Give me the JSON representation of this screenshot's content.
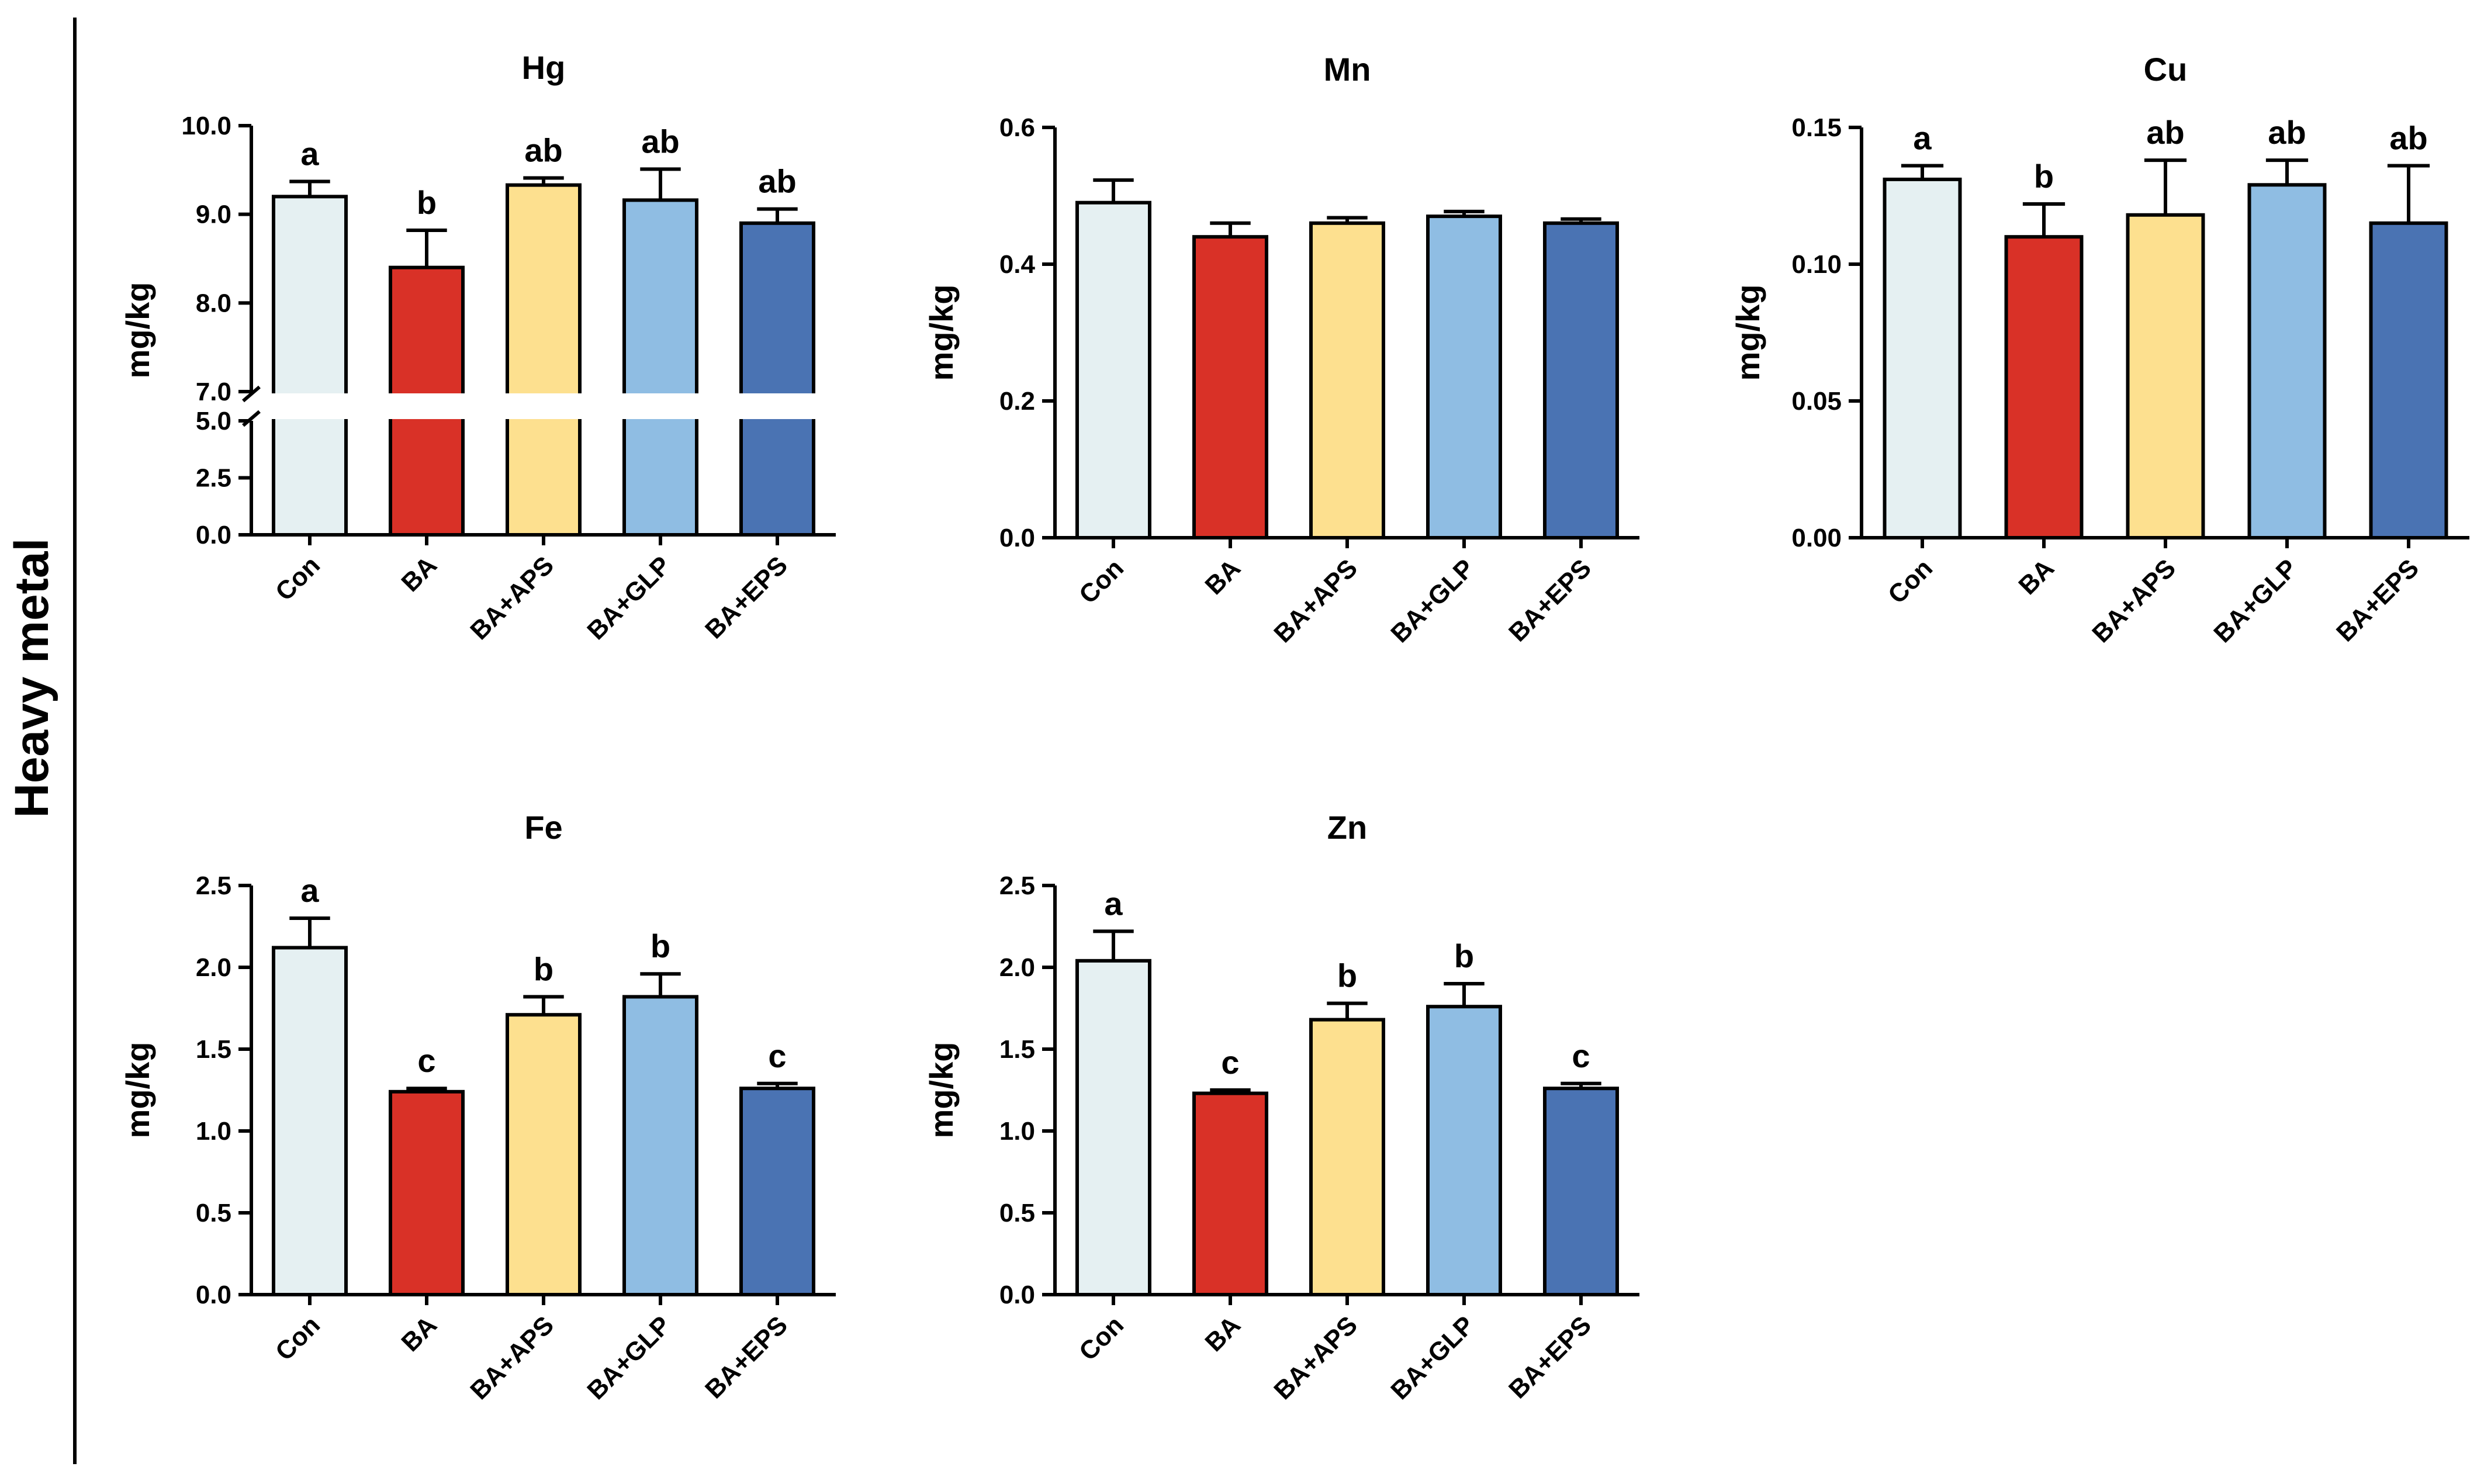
{
  "figure": {
    "side_label": "Heavy metal"
  },
  "colors": {
    "Con": "#e5f0f2",
    "BA": "#d93127",
    "BA+APS": "#fde08f",
    "BA+GLP": "#8fbde3",
    "BA+EPS": "#4a73b3",
    "axis": "#000000"
  },
  "chart_data": [
    {
      "id": "hg",
      "type": "bar",
      "title": "Hg",
      "ylabel": "mg/kg",
      "categories": [
        "Con",
        "BA",
        "BA+APS",
        "BA+GLP",
        "BA+EPS"
      ],
      "values": [
        9.2,
        8.4,
        9.33,
        9.16,
        8.9
      ],
      "errors": [
        0.17,
        0.42,
        0.08,
        0.35,
        0.16
      ],
      "letters": [
        "a",
        "b",
        "ab",
        "ab",
        "ab"
      ],
      "broken_axis": true,
      "segments": [
        {
          "range": [
            0,
            5
          ],
          "ticks": [
            0.0,
            2.5,
            5.0
          ],
          "tick_labels": [
            "0.0",
            "2.5",
            "5.0"
          ]
        },
        {
          "range": [
            7,
            10
          ],
          "ticks": [
            7.0,
            8.0,
            9.0,
            10.0
          ],
          "tick_labels": [
            "7.0",
            "8.0",
            "9.0",
            "10.0"
          ]
        }
      ]
    },
    {
      "id": "mn",
      "type": "bar",
      "title": "Mn",
      "ylabel": "mg/kg",
      "categories": [
        "Con",
        "BA",
        "BA+APS",
        "BA+GLP",
        "BA+EPS"
      ],
      "values": [
        0.49,
        0.44,
        0.46,
        0.47,
        0.46
      ],
      "errors": [
        0.033,
        0.02,
        0.008,
        0.007,
        0.006
      ],
      "letters": [
        "",
        "",
        "",
        "",
        ""
      ],
      "ylim": [
        0,
        0.6
      ],
      "ticks": [
        0.0,
        0.2,
        0.4,
        0.6
      ],
      "tick_labels": [
        "0.0",
        "0.2",
        "0.4",
        "0.6"
      ]
    },
    {
      "id": "cu",
      "type": "bar",
      "title": "Cu",
      "ylabel": "mg/kg",
      "categories": [
        "Con",
        "BA",
        "BA+APS",
        "BA+GLP",
        "BA+EPS"
      ],
      "values": [
        0.131,
        0.11,
        0.118,
        0.129,
        0.115
      ],
      "errors": [
        0.005,
        0.012,
        0.02,
        0.009,
        0.021
      ],
      "letters": [
        "a",
        "b",
        "ab",
        "ab",
        "ab"
      ],
      "ylim": [
        0,
        0.15
      ],
      "ticks": [
        0.0,
        0.05,
        0.1,
        0.15
      ],
      "tick_labels": [
        "0.00",
        "0.05",
        "0.10",
        "0.15"
      ]
    },
    {
      "id": "fe",
      "type": "bar",
      "title": "Fe",
      "ylabel": "mg/kg",
      "categories": [
        "Con",
        "BA",
        "BA+APS",
        "BA+GLP",
        "BA+EPS"
      ],
      "values": [
        2.12,
        1.24,
        1.71,
        1.82,
        1.26
      ],
      "errors": [
        0.18,
        0.02,
        0.11,
        0.14,
        0.03
      ],
      "letters": [
        "a",
        "c",
        "b",
        "b",
        "c"
      ],
      "ylim": [
        0,
        2.5
      ],
      "ticks": [
        0.0,
        0.5,
        1.0,
        1.5,
        2.0,
        2.5
      ],
      "tick_labels": [
        "0.0",
        "0.5",
        "1.0",
        "1.5",
        "2.0",
        "2.5"
      ]
    },
    {
      "id": "zn",
      "type": "bar",
      "title": "Zn",
      "ylabel": "mg/kg",
      "categories": [
        "Con",
        "BA",
        "BA+APS",
        "BA+GLP",
        "BA+EPS"
      ],
      "values": [
        2.04,
        1.23,
        1.68,
        1.76,
        1.26
      ],
      "errors": [
        0.18,
        0.02,
        0.1,
        0.14,
        0.03
      ],
      "letters": [
        "a",
        "c",
        "b",
        "b",
        "c"
      ],
      "ylim": [
        0,
        2.5
      ],
      "ticks": [
        0.0,
        0.5,
        1.0,
        1.5,
        2.0,
        2.5
      ],
      "tick_labels": [
        "0.0",
        "0.5",
        "1.0",
        "1.5",
        "2.0",
        "2.5"
      ]
    }
  ]
}
